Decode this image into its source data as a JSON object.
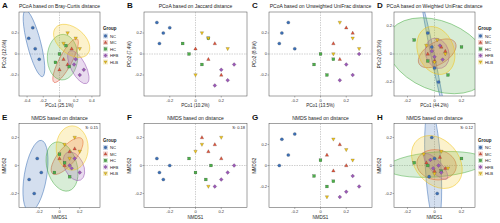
{
  "chart_data": [
    {
      "type": "ellipse",
      "panel": "A",
      "title": "PCoA based on Bray-Curtis distance",
      "x_label": "PCo1 (25.1%)",
      "y_label": "PCo2 (12.6%)",
      "xlim": [
        -0.5,
        0.5
      ],
      "ylim": [
        -0.4,
        0.4
      ],
      "xticks": [
        -0.4,
        -0.2,
        0,
        0.2,
        0.4
      ],
      "yticks": [
        -0.2,
        0,
        0.2
      ],
      "grid": true,
      "legend": "right",
      "legend_title": "Group",
      "series": [
        {
          "name": "NC",
          "color": "#3b6fb6",
          "marker": "circle",
          "x": [
            -0.38,
            -0.3,
            -0.25,
            -0.33
          ],
          "y": [
            0.15,
            0.05,
            -0.05,
            0.25
          ]
        },
        {
          "name": "MC",
          "color": "#e0533a",
          "marker": "triangle",
          "x": [
            0.05,
            0.15,
            0.0,
            0.1
          ],
          "y": [
            -0.05,
            0.05,
            -0.15,
            -0.1
          ]
        },
        {
          "name": "HC",
          "color": "#4daf4a",
          "marker": "square",
          "x": [
            0.0,
            0.12,
            -0.05,
            0.08
          ],
          "y": [
            0.0,
            -0.12,
            -0.08,
            0.08
          ]
        },
        {
          "name": "HFB",
          "color": "#9b59b6",
          "marker": "diamond",
          "x": [
            0.18,
            0.25,
            0.2,
            0.3
          ],
          "y": [
            -0.1,
            -0.2,
            -0.05,
            -0.15
          ]
        },
        {
          "name": "HLB",
          "color": "#f0c419",
          "marker": "triangle-down",
          "x": [
            0.05,
            0.2,
            0.1,
            0.25
          ],
          "y": [
            0.1,
            0.15,
            0.2,
            0.05
          ]
        }
      ]
    },
    {
      "type": "scatter",
      "panel": "B",
      "title": "PCoA based on Jaccard distance",
      "x_label": "PCo1 (10.2%)",
      "y_label": "PCo2 (7.4%)",
      "xlim": [
        -0.4,
        0.4
      ],
      "ylim": [
        -0.4,
        0.4
      ],
      "xticks": [
        -0.2,
        0,
        0.2
      ],
      "yticks": [
        -0.2,
        0,
        0.2
      ],
      "grid": true,
      "series": [
        {
          "color": "#3b6fb6",
          "marker": "circle",
          "x": [
            -0.3,
            -0.25,
            -0.2,
            -0.28
          ],
          "y": [
            0.3,
            0.2,
            0.25,
            0.1
          ]
        },
        {
          "color": "#e0533a",
          "marker": "triangle",
          "x": [
            0.0,
            0.1,
            0.2,
            0.15
          ],
          "y": [
            0.05,
            -0.05,
            -0.2,
            0.1
          ]
        },
        {
          "color": "#4daf4a",
          "marker": "square",
          "x": [
            -0.05,
            0.05,
            0.1,
            -0.1
          ],
          "y": [
            0.0,
            -0.1,
            0.15,
            0.1
          ]
        },
        {
          "color": "#9b59b6",
          "marker": "diamond",
          "x": [
            0.2,
            0.25,
            0.3,
            0.15
          ],
          "y": [
            -0.15,
            -0.25,
            -0.1,
            -0.3
          ]
        },
        {
          "color": "#f0c419",
          "marker": "triangle-down",
          "x": [
            0.05,
            0.1,
            0.25,
            0.0
          ],
          "y": [
            0.2,
            0.15,
            0.05,
            -0.2
          ]
        }
      ]
    },
    {
      "type": "scatter",
      "panel": "C",
      "title": "PCoA based on Unweighted UniFrac distance",
      "x_label": "PCo1 (13.5%)",
      "y_label": "PCo2 (8.9%)",
      "xlim": [
        -0.4,
        0.4
      ],
      "ylim": [
        -0.4,
        0.4
      ],
      "xticks": [
        -0.2,
        0,
        0.2
      ],
      "yticks": [
        -0.2,
        0,
        0.2
      ],
      "grid": true,
      "series": [
        {
          "color": "#3b6fb6",
          "marker": "circle",
          "x": [
            -0.3,
            -0.25,
            -0.2,
            -0.32
          ],
          "y": [
            0.2,
            0.3,
            0.05,
            0.1
          ]
        },
        {
          "color": "#e0533a",
          "marker": "triangle",
          "x": [
            0.1,
            0.2,
            0.15,
            0.25
          ],
          "y": [
            0.1,
            0.25,
            -0.05,
            0.2
          ]
        },
        {
          "color": "#4daf4a",
          "marker": "square",
          "x": [
            -0.05,
            0.05,
            0.0,
            0.1
          ],
          "y": [
            -0.1,
            -0.2,
            0.0,
            -0.05
          ]
        },
        {
          "color": "#9b59b6",
          "marker": "diamond",
          "x": [
            0.2,
            0.3,
            0.25,
            0.15
          ],
          "y": [
            -0.1,
            0.0,
            -0.2,
            -0.25
          ]
        },
        {
          "color": "#f0c419",
          "marker": "triangle-down",
          "x": [
            0.15,
            0.25,
            0.3,
            0.1
          ],
          "y": [
            0.3,
            0.15,
            0.05,
            0.0
          ]
        }
      ]
    },
    {
      "type": "ellipse",
      "panel": "D",
      "title": "PCoA based on Weighted UniFrac distance",
      "x_label": "PCo1 (44.2%)",
      "y_label": "PCo2 (18.3%)",
      "xlim": [
        -0.3,
        0.3
      ],
      "ylim": [
        -0.3,
        0.3
      ],
      "xticks": [
        -0.2,
        0,
        0.2
      ],
      "yticks": [
        -0.2,
        0,
        0.2
      ],
      "grid": true,
      "legend": "right",
      "legend_title": "Group",
      "series": [
        {
          "name": "NC",
          "color": "#3b6fb6",
          "marker": "circle",
          "x": [
            -0.05,
            0.0,
            -0.02,
            0.03
          ],
          "y": [
            0.15,
            -0.1,
            0.05,
            -0.2
          ]
        },
        {
          "name": "MC",
          "color": "#e0533a",
          "marker": "triangle",
          "x": [
            -0.05,
            0.05,
            0.0,
            0.08
          ],
          "y": [
            0.0,
            0.05,
            -0.05,
            0.02
          ]
        },
        {
          "name": "HC",
          "color": "#4daf4a",
          "marker": "square",
          "x": [
            -0.15,
            0.1,
            0.2,
            -0.05
          ],
          "y": [
            0.1,
            -0.15,
            0.05,
            -0.05
          ]
        },
        {
          "name": "HFB",
          "color": "#9b59b6",
          "marker": "diamond",
          "x": [
            -0.02,
            0.04,
            0.0,
            0.06
          ],
          "y": [
            0.02,
            0.06,
            -0.02,
            -0.04
          ]
        },
        {
          "name": "HLB",
          "color": "#f0c419",
          "marker": "triangle-down",
          "x": [
            -0.06,
            0.02,
            0.08,
            0.0
          ],
          "y": [
            0.06,
            0.1,
            0.0,
            -0.06
          ]
        }
      ]
    },
    {
      "type": "ellipse",
      "panel": "E",
      "title": "NMDS based on distance",
      "x_label": "NMDS1",
      "y_label": "NMDS2",
      "annotation": "S: 0.15",
      "xlim": [
        -0.4,
        0.4
      ],
      "ylim": [
        -0.3,
        0.3
      ],
      "xticks": [
        -0.2,
        0,
        0.2
      ],
      "yticks": [
        -0.2,
        0,
        0.2
      ],
      "grid": false,
      "legend": "right",
      "legend_title": "Group",
      "series": [
        {
          "name": "NC",
          "color": "#3b6fb6",
          "marker": "circle",
          "x": [
            -0.3,
            -0.22,
            -0.25,
            -0.18
          ],
          "y": [
            -0.1,
            0.05,
            -0.2,
            -0.05
          ]
        },
        {
          "name": "MC",
          "color": "#e0533a",
          "marker": "triangle",
          "x": [
            0.0,
            0.1,
            0.05,
            0.15
          ],
          "y": [
            0.05,
            0.1,
            0.0,
            0.12
          ]
        },
        {
          "name": "HC",
          "color": "#4daf4a",
          "marker": "square",
          "x": [
            -0.05,
            0.05,
            0.1,
            0.0
          ],
          "y": [
            -0.05,
            0.02,
            -0.08,
            0.08
          ]
        },
        {
          "name": "HFB",
          "color": "#9b59b6",
          "marker": "diamond",
          "x": [
            0.1,
            0.15,
            0.2,
            0.12
          ],
          "y": [
            0.0,
            0.05,
            -0.05,
            -0.02
          ]
        },
        {
          "name": "HLB",
          "color": "#f0c419",
          "marker": "triangle-down",
          "x": [
            0.05,
            0.15,
            0.2,
            0.1
          ],
          "y": [
            0.15,
            0.2,
            0.1,
            0.05
          ]
        }
      ]
    },
    {
      "type": "scatter",
      "panel": "F",
      "title": "NMDS based on distance",
      "x_label": "NMDS1",
      "y_label": "NMDS2",
      "annotation": "S: 0.18",
      "xlim": [
        -0.4,
        0.4
      ],
      "ylim": [
        -0.3,
        0.3
      ],
      "xticks": [
        -0.2,
        0,
        0.2
      ],
      "yticks": [
        -0.2,
        0,
        0.2
      ],
      "grid": true,
      "series": [
        {
          "color": "#3b6fb6",
          "marker": "circle",
          "x": [
            -0.3,
            -0.25,
            -0.2,
            -0.28
          ],
          "y": [
            0.05,
            -0.1,
            0.0,
            -0.05
          ]
        },
        {
          "color": "#e0533a",
          "marker": "triangle",
          "x": [
            0.1,
            0.2,
            0.15,
            0.05
          ],
          "y": [
            0.1,
            0.05,
            0.15,
            0.2
          ]
        },
        {
          "color": "#4daf4a",
          "marker": "square",
          "x": [
            0.0,
            -0.05,
            0.08,
            0.12
          ],
          "y": [
            -0.05,
            0.05,
            -0.1,
            0.0
          ]
        },
        {
          "color": "#9b59b6",
          "marker": "diamond",
          "x": [
            0.2,
            0.25,
            0.3,
            0.15
          ],
          "y": [
            -0.1,
            -0.05,
            0.0,
            -0.15
          ]
        },
        {
          "color": "#f0c419",
          "marker": "triangle-down",
          "x": [
            0.05,
            0.1,
            0.2,
            0.0
          ],
          "y": [
            0.15,
            -0.15,
            0.2,
            0.1
          ]
        }
      ]
    },
    {
      "type": "scatter",
      "panel": "G",
      "title": "NMDS based on distance",
      "x_label": "NMDS1",
      "y_label": "NMDS2",
      "xlim": [
        -0.4,
        0.4
      ],
      "ylim": [
        -0.4,
        0.4
      ],
      "xticks": [
        -0.2,
        0,
        0.2
      ],
      "yticks": [
        -0.2,
        0,
        0.2
      ],
      "grid": true,
      "series": [
        {
          "color": "#3b6fb6",
          "marker": "circle",
          "x": [
            -0.3,
            -0.2,
            -0.25,
            -0.32
          ],
          "y": [
            0.25,
            0.3,
            0.1,
            0.0
          ]
        },
        {
          "color": "#e0533a",
          "marker": "triangle",
          "x": [
            0.05,
            0.1,
            0.15,
            0.2
          ],
          "y": [
            0.1,
            -0.05,
            0.2,
            0.0
          ]
        },
        {
          "color": "#4daf4a",
          "marker": "square",
          "x": [
            -0.05,
            0.0,
            0.05,
            0.1
          ],
          "y": [
            -0.1,
            0.05,
            -0.2,
            -0.15
          ]
        },
        {
          "color": "#9b59b6",
          "marker": "diamond",
          "x": [
            0.2,
            0.25,
            0.15,
            0.3
          ],
          "y": [
            -0.25,
            -0.1,
            -0.3,
            -0.2
          ]
        },
        {
          "color": "#f0c419",
          "marker": "triangle-down",
          "x": [
            0.1,
            0.2,
            0.25,
            0.05
          ],
          "y": [
            0.25,
            0.15,
            0.05,
            -0.3
          ]
        }
      ]
    },
    {
      "type": "ellipse",
      "panel": "H",
      "title": "NMDS based on distance",
      "x_label": "NMDS1",
      "y_label": "NMDS2",
      "annotation": "S: 0.12",
      "xlim": [
        -0.3,
        0.3
      ],
      "ylim": [
        -0.3,
        0.3
      ],
      "xticks": [
        -0.2,
        0,
        0.2
      ],
      "yticks": [
        -0.2,
        0,
        0.2
      ],
      "grid": true,
      "legend": "right",
      "legend_title": "Group",
      "series": [
        {
          "name": "NC",
          "color": "#3b6fb6",
          "marker": "circle",
          "x": [
            -0.02,
            0.02,
            0.0,
            -0.04
          ],
          "y": [
            0.2,
            -0.2,
            0.05,
            -0.08
          ]
        },
        {
          "name": "MC",
          "color": "#e0533a",
          "marker": "triangle",
          "x": [
            -0.06,
            0.04,
            0.0,
            0.08
          ],
          "y": [
            0.02,
            0.06,
            -0.04,
            -0.02
          ]
        },
        {
          "name": "HC",
          "color": "#4daf4a",
          "marker": "square",
          "x": [
            -0.15,
            0.2,
            0.05,
            -0.05
          ],
          "y": [
            0.02,
            0.05,
            -0.04,
            0.0
          ]
        },
        {
          "name": "HFB",
          "color": "#9b59b6",
          "marker": "diamond",
          "x": [
            -0.03,
            0.03,
            0.05,
            -0.01
          ],
          "y": [
            0.04,
            0.0,
            -0.05,
            -0.02
          ]
        },
        {
          "name": "HLB",
          "color": "#f0c419",
          "marker": "triangle-down",
          "x": [
            -0.08,
            0.05,
            0.1,
            0.0
          ],
          "y": [
            0.08,
            0.1,
            -0.02,
            -0.06
          ]
        }
      ]
    }
  ]
}
